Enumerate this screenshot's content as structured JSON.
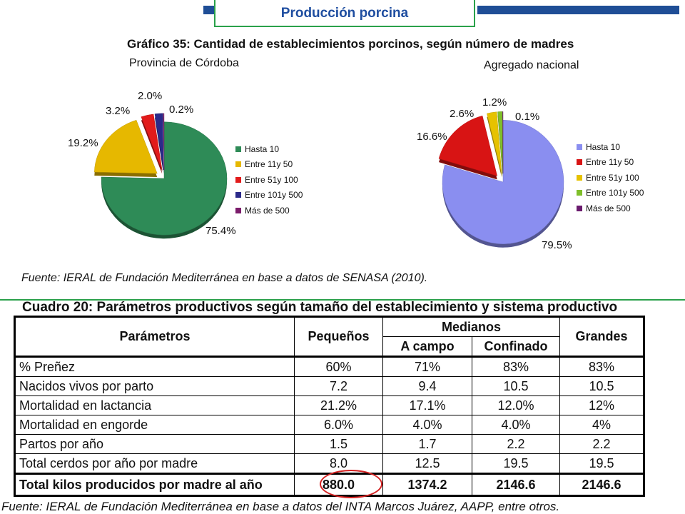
{
  "header": {
    "title": "Producción porcina"
  },
  "chart_title": "Gráfico 35: Cantidad de establecimientos porcinos, según número de madres",
  "chart_data": [
    {
      "type": "pie",
      "title": "Provincia de Córdoba",
      "labels": [
        "Hasta 10",
        "Entre 11y 50",
        "Entre 51y 100",
        "Entre 101y 500",
        "Más de 500"
      ],
      "values": [
        75.4,
        19.2,
        3.2,
        2.0,
        0.2
      ],
      "value_labels": [
        "75.4%",
        "19.2%",
        "3.2%",
        "2.0%",
        "0.2%"
      ],
      "colors": [
        "#2e8b57",
        "#e6b800",
        "#e21b1b",
        "#2b2a8a",
        "#7b1c6b"
      ],
      "exploded": [
        false,
        true,
        true,
        true,
        true
      ],
      "legend_position": "right"
    },
    {
      "type": "pie",
      "title": "Agregado nacional",
      "labels": [
        "Hasta 10",
        "Entre 11y 50",
        "Entre 51y 100",
        "Entre 101y 500",
        "Más de 500"
      ],
      "values": [
        79.5,
        16.6,
        2.6,
        1.2,
        0.1
      ],
      "value_labels": [
        "79.5%",
        "16.6%",
        "2.6%",
        "1.2%",
        "0.1%"
      ],
      "colors": [
        "#8a8ef0",
        "#d81414",
        "#e6c200",
        "#7fbf2a",
        "#6a1b6e"
      ],
      "exploded": [
        false,
        true,
        true,
        true,
        true
      ],
      "legend_position": "right"
    }
  ],
  "source1": "Fuente: IERAL de Fundación Mediterránea en base a datos de SENASA (2010).",
  "table": {
    "title": "Cuadro 20: Parámetros productivos según tamaño del establecimiento y sistema productivo",
    "headers": {
      "param": "Parámetros",
      "small": "Pequeños",
      "medium": "Medianos",
      "medium_a": "A campo",
      "medium_b": "Confinado",
      "large": "Grandes"
    },
    "rows": [
      [
        "% Preñez",
        "60%",
        "71%",
        "83%",
        "83%"
      ],
      [
        "Nacidos vivos por parto",
        "7.2",
        "9.4",
        "10.5",
        "10.5"
      ],
      [
        "Mortalidad en lactancia",
        "21.2%",
        "17.1%",
        "12.0%",
        "12%"
      ],
      [
        "Mortalidad en engorde",
        "6.0%",
        "4.0%",
        "4.0%",
        "4%"
      ],
      [
        "Partos por año",
        "1.5",
        "1.7",
        "2.2",
        "2.2"
      ],
      [
        "Total cerdos por año por madre",
        "8.0",
        "12.5",
        "19.5",
        "19.5"
      ]
    ],
    "total": [
      "Total kilos producidos por madre al año",
      "880.0",
      "1374.2",
      "2146.6",
      "2146.6"
    ]
  },
  "source2": "Fuente: IERAL de Fundación Mediterránea en base a datos del INTA Marcos Juárez, AAPP, entre otros."
}
